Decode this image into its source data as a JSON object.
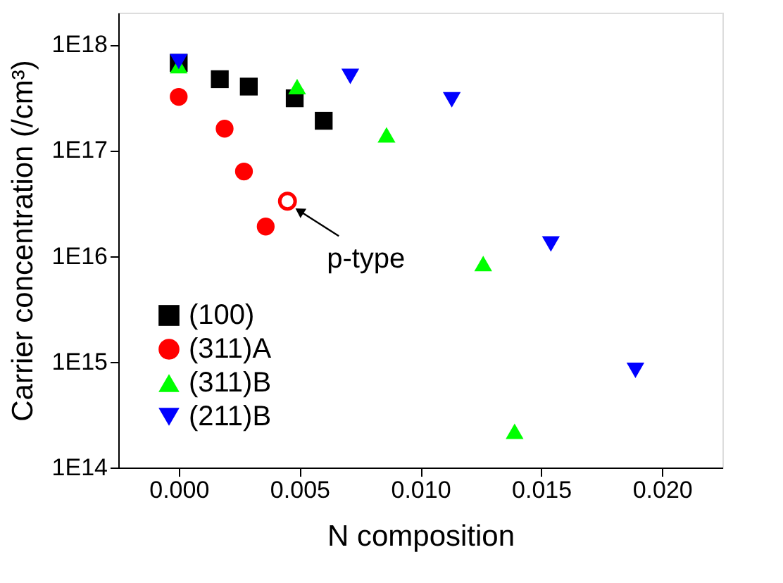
{
  "chart_data": {
    "type": "scatter",
    "xlabel": "N composition",
    "ylabel": "Carrier concentration (/cm³)",
    "log": "y",
    "grid": false,
    "legend": "bottom left",
    "xlim": [
      -0.0025,
      0.0225
    ],
    "xticks": [
      {
        "value": 0,
        "label": "0.000"
      },
      {
        "value": 0.005,
        "label": "0.005"
      },
      {
        "value": 0.01,
        "label": "0.010"
      },
      {
        "value": 0.015,
        "label": "0.015"
      },
      {
        "value": 0.02,
        "label": "0.020"
      }
    ],
    "ylim": [
      100000000000000.0,
      2e+18
    ],
    "yticks": [
      {
        "value": 100000000000000.0,
        "label": "1E14"
      },
      {
        "value": 1000000000000000.0,
        "label": "1E15"
      },
      {
        "value": 1e+16,
        "label": "1E16"
      },
      {
        "value": 1e+17,
        "label": "1E17"
      },
      {
        "value": 1e+18,
        "label": "1E18"
      }
    ],
    "series": [
      {
        "name": "(100)",
        "color": "#000000",
        "marker": "square",
        "x": [
          0,
          0.0017,
          0.0029,
          0.0048,
          0.006
        ],
        "values": [
          6.7e+17,
          4.7e+17,
          4e+17,
          3.1e+17,
          1.9e+17
        ]
      },
      {
        "name": "(311)A",
        "color": "#ff0000",
        "marker": "circle",
        "x": [
          0,
          0.0019,
          0.0027,
          0.0036
        ],
        "values": [
          3.2e+17,
          1.6e+17,
          6.3e+16,
          1.9e+16
        ]
      },
      {
        "name": "(311)B",
        "color": "#00ff00",
        "marker": "triangle",
        "x": [
          0,
          0.0049,
          0.0086,
          0.0126,
          0.0139
        ],
        "values": [
          6.3e+17,
          4e+17,
          1.4e+17,
          8500000000000000.0,
          220000000000000.0
        ]
      },
      {
        "name": "(211)B",
        "color": "#0000ff",
        "marker": "triangle-down",
        "x": [
          0,
          0.0071,
          0.0113,
          0.0154,
          0.0189
        ],
        "values": [
          6.9e+17,
          5e+17,
          3e+17,
          1.3e+16,
          830000000000000.0
        ]
      },
      {
        "color": "#ff0000",
        "marker": "circle",
        "x": [
          0.0045
        ],
        "values": [
          3.3e+16
        ]
      }
    ],
    "annotations": [
      {
        "text": "p-type",
        "x": 0.0045,
        "y": 3.3e+16
      }
    ]
  }
}
